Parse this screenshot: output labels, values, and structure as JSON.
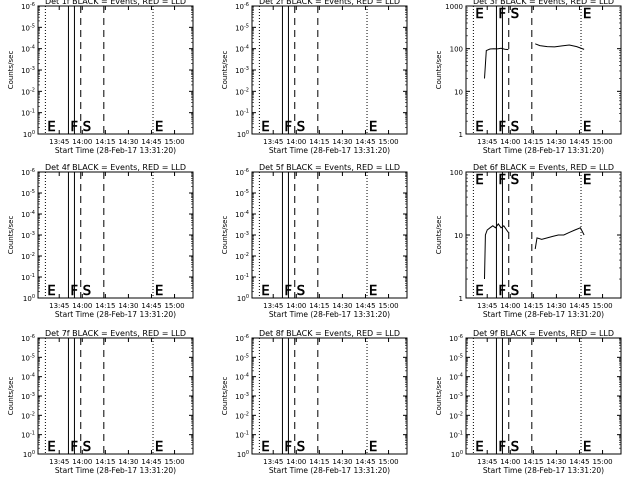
{
  "chart_data": [
    {
      "type": "line",
      "title": "Det 1f BLACK = Events, RED = LLD",
      "xlabel": "Start Time (28-Feb-17 13:31:20)",
      "ylabel": "Counts/sec",
      "scale": "log",
      "xticks": [
        "13:45",
        "14:00",
        "14:15",
        "14:30",
        "14:45",
        "15:00"
      ],
      "yticks": [
        "10^0",
        "10^-1",
        "10^-2",
        "10^-3",
        "10^-4",
        "10^-5",
        "10^-6"
      ],
      "ylim": [
        1e-06,
        1
      ],
      "markers": [
        {
          "label": "E",
          "time": "13:36",
          "style": "dotted"
        },
        {
          "label": "F",
          "time": "13:51",
          "style": "solid"
        },
        {
          "label": "S",
          "time": "13:59",
          "style": "dashed"
        },
        {
          "label": "",
          "time": "14:14",
          "style": "dashed"
        },
        {
          "label": "E",
          "time": "14:46",
          "style": "dotted"
        }
      ],
      "series": []
    },
    {
      "type": "line",
      "title": "Det 2f BLACK = Events, RED = LLD",
      "xlabel": "Start Time (28-Feb-17 13:31:20)",
      "ylabel": "Counts/sec",
      "scale": "log",
      "xticks": [
        "13:45",
        "14:00",
        "14:15",
        "14:30",
        "14:45",
        "15:00"
      ],
      "yticks": [
        "10^0",
        "10^-1",
        "10^-2",
        "10^-3",
        "10^-4",
        "10^-5",
        "10^-6"
      ],
      "ylim": [
        1e-06,
        1
      ],
      "markers": [
        {
          "label": "E",
          "time": "13:36",
          "style": "dotted"
        },
        {
          "label": "F",
          "time": "13:51",
          "style": "solid"
        },
        {
          "label": "S",
          "time": "13:59",
          "style": "dashed"
        },
        {
          "label": "",
          "time": "14:14",
          "style": "dashed"
        },
        {
          "label": "E",
          "time": "14:46",
          "style": "dotted"
        }
      ],
      "series": []
    },
    {
      "type": "line",
      "title": "Det 3f BLACK = Events, RED = LLD",
      "xlabel": "Start Time (28-Feb-17 13:31:20)",
      "ylabel": "Counts/sec",
      "scale": "log",
      "xticks": [
        "13:45",
        "14:00",
        "14:15",
        "14:30",
        "14:45",
        "15:00"
      ],
      "yticks": [
        "1",
        "10",
        "100",
        "1000"
      ],
      "ylim": [
        1,
        1000
      ],
      "markers": [
        {
          "label": "E",
          "time": "13:36",
          "style": "dotted"
        },
        {
          "label": "F",
          "time": "13:51",
          "style": "solid"
        },
        {
          "label": "S",
          "time": "13:59",
          "style": "dashed"
        },
        {
          "label": "",
          "time": "14:14",
          "style": "dashed"
        },
        {
          "label": "E",
          "time": "14:46",
          "style": "dotted"
        }
      ],
      "series": [
        {
          "segments": [
            {
              "x": [
                13.72,
                13.74,
                13.78,
                13.82,
                13.86,
                13.9,
                13.94,
                13.98
              ],
              "y": [
                20,
                90,
                98,
                100,
                99,
                102,
                97,
                95
              ]
            },
            {
              "x": [
                14.27,
                14.32,
                14.4,
                14.48,
                14.56,
                14.64,
                14.72,
                14.8
              ],
              "y": [
                130,
                118,
                112,
                110,
                116,
                122,
                112,
                96
              ]
            }
          ]
        }
      ]
    },
    {
      "type": "line",
      "title": "Det 4f BLACK = Events, RED = LLD",
      "xlabel": "Start Time (28-Feb-17 13:31:20)",
      "ylabel": "Counts/sec",
      "scale": "log",
      "xticks": [
        "13:45",
        "14:00",
        "14:15",
        "14:30",
        "14:45",
        "15:00"
      ],
      "yticks": [
        "10^0",
        "10^-1",
        "10^-2",
        "10^-3",
        "10^-4",
        "10^-5",
        "10^-6"
      ],
      "ylim": [
        1e-06,
        1
      ],
      "markers": [
        {
          "label": "E",
          "time": "13:36",
          "style": "dotted"
        },
        {
          "label": "F",
          "time": "13:51",
          "style": "solid"
        },
        {
          "label": "S",
          "time": "13:59",
          "style": "dashed"
        },
        {
          "label": "",
          "time": "14:14",
          "style": "dashed"
        },
        {
          "label": "E",
          "time": "14:46",
          "style": "dotted"
        }
      ],
      "series": []
    },
    {
      "type": "line",
      "title": "Det 5f BLACK = Events, RED = LLD",
      "xlabel": "Start Time (28-Feb-17 13:31:20)",
      "ylabel": "Counts/sec",
      "scale": "log",
      "xticks": [
        "13:45",
        "14:00",
        "14:15",
        "14:30",
        "14:45",
        "15:00"
      ],
      "yticks": [
        "10^0",
        "10^-1",
        "10^-2",
        "10^-3",
        "10^-4",
        "10^-5",
        "10^-6"
      ],
      "ylim": [
        1e-06,
        1
      ],
      "markers": [
        {
          "label": "E",
          "time": "13:36",
          "style": "dotted"
        },
        {
          "label": "F",
          "time": "13:51",
          "style": "solid"
        },
        {
          "label": "S",
          "time": "13:59",
          "style": "dashed"
        },
        {
          "label": "",
          "time": "14:14",
          "style": "dashed"
        },
        {
          "label": "E",
          "time": "14:46",
          "style": "dotted"
        }
      ],
      "series": []
    },
    {
      "type": "line",
      "title": "Det 6f BLACK = Events, RED = LLD",
      "xlabel": "Start Time (28-Feb-17 13:31:20)",
      "ylabel": "Counts/sec",
      "scale": "log",
      "xticks": [
        "13:45",
        "14:00",
        "14:15",
        "14:30",
        "14:45",
        "15:00"
      ],
      "yticks": [
        "1",
        "10",
        "100"
      ],
      "ylim": [
        1,
        100
      ],
      "markers": [
        {
          "label": "E",
          "time": "13:36",
          "style": "dotted"
        },
        {
          "label": "F",
          "time": "13:51",
          "style": "solid"
        },
        {
          "label": "S",
          "time": "13:59",
          "style": "dashed"
        },
        {
          "label": "",
          "time": "14:14",
          "style": "dashed"
        },
        {
          "label": "E",
          "time": "14:46",
          "style": "dotted"
        }
      ],
      "series": [
        {
          "segments": [
            {
              "x": [
                13.72,
                13.73,
                13.75,
                13.78,
                13.81,
                13.84,
                13.87,
                13.9,
                13.93,
                13.96,
                13.98
              ],
              "y": [
                2,
                10,
                12,
                13,
                14,
                13,
                15,
                13,
                14,
                12,
                11
              ]
            },
            {
              "x": [
                14.27,
                14.29,
                14.34,
                14.4,
                14.46,
                14.52,
                14.58,
                14.64,
                14.7,
                14.76,
                14.8
              ],
              "y": [
                6,
                9,
                8.5,
                9,
                9.5,
                10,
                10,
                11,
                12,
                13,
                10
              ]
            }
          ]
        }
      ]
    },
    {
      "type": "line",
      "title": "Det 7f BLACK = Events, RED = LLD",
      "xlabel": "Start Time (28-Feb-17 13:31:20)",
      "ylabel": "Counts/sec",
      "scale": "log",
      "xticks": [
        "13:45",
        "14:00",
        "14:15",
        "14:30",
        "14:45",
        "15:00"
      ],
      "yticks": [
        "10^0",
        "10^-1",
        "10^-2",
        "10^-3",
        "10^-4",
        "10^-5",
        "10^-6"
      ],
      "ylim": [
        1e-06,
        1
      ],
      "markers": [
        {
          "label": "E",
          "time": "13:36",
          "style": "dotted"
        },
        {
          "label": "F",
          "time": "13:51",
          "style": "solid"
        },
        {
          "label": "S",
          "time": "13:59",
          "style": "dashed"
        },
        {
          "label": "",
          "time": "14:14",
          "style": "dashed"
        },
        {
          "label": "E",
          "time": "14:46",
          "style": "dotted"
        }
      ],
      "series": []
    },
    {
      "type": "line",
      "title": "Det 8f BLACK = Events, RED = LLD",
      "xlabel": "Start Time (28-Feb-17 13:31:20)",
      "ylabel": "Counts/sec",
      "scale": "log",
      "xticks": [
        "13:45",
        "14:00",
        "14:15",
        "14:30",
        "14:45",
        "15:00"
      ],
      "yticks": [
        "10^0",
        "10^-1",
        "10^-2",
        "10^-3",
        "10^-4",
        "10^-5",
        "10^-6"
      ],
      "ylim": [
        1e-06,
        1
      ],
      "markers": [
        {
          "label": "E",
          "time": "13:36",
          "style": "dotted"
        },
        {
          "label": "F",
          "time": "13:51",
          "style": "solid"
        },
        {
          "label": "S",
          "time": "13:59",
          "style": "dashed"
        },
        {
          "label": "",
          "time": "14:14",
          "style": "dashed"
        },
        {
          "label": "E",
          "time": "14:46",
          "style": "dotted"
        }
      ],
      "series": []
    },
    {
      "type": "line",
      "title": "Det 9f BLACK = Events, RED = LLD",
      "xlabel": "Start Time (28-Feb-17 13:31:20)",
      "ylabel": "Counts/sec",
      "scale": "log",
      "xticks": [
        "13:45",
        "14:00",
        "14:15",
        "14:30",
        "14:45",
        "15:00"
      ],
      "yticks": [
        "10^0",
        "10^-1",
        "10^-2",
        "10^-3",
        "10^-4",
        "10^-5",
        "10^-6"
      ],
      "ylim": [
        1e-06,
        1
      ],
      "markers": [
        {
          "label": "E",
          "time": "13:36",
          "style": "dotted"
        },
        {
          "label": "F",
          "time": "13:51",
          "style": "solid"
        },
        {
          "label": "S",
          "time": "13:59",
          "style": "dashed"
        },
        {
          "label": "",
          "time": "14:14",
          "style": "dashed"
        },
        {
          "label": "E",
          "time": "14:46",
          "style": "dotted"
        }
      ],
      "series": []
    }
  ]
}
